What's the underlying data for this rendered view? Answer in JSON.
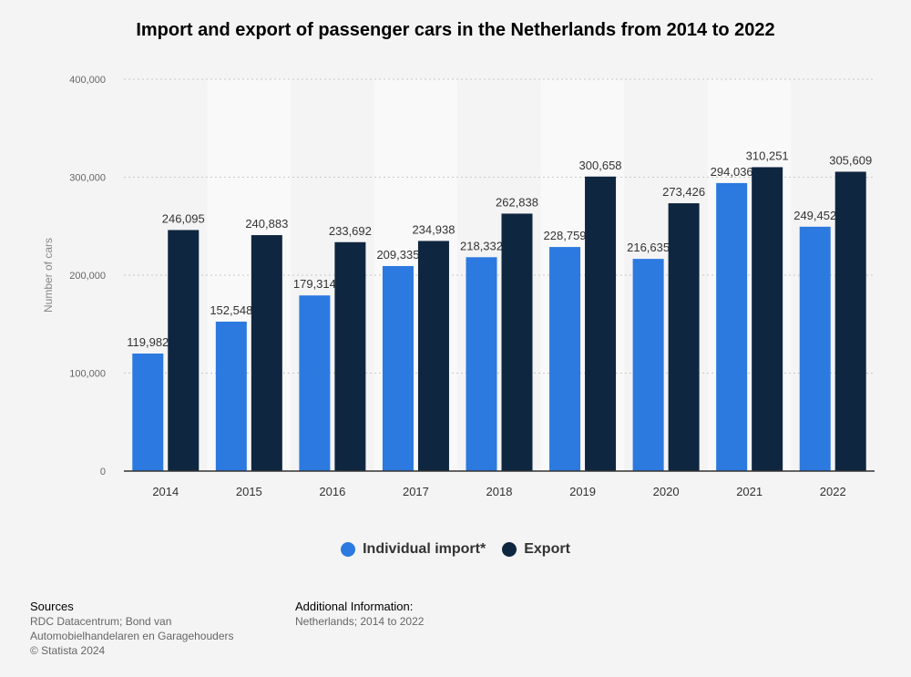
{
  "title": "Import and export of passenger cars in the Netherlands from 2014 to 2022",
  "legend": [
    {
      "label": "Individual import*",
      "color": "#2c79e0"
    },
    {
      "label": "Export",
      "color": "#0f2640"
    }
  ],
  "footer": {
    "sources_header": "Sources",
    "sources_line1": "RDC Datacentrum; Bond van",
    "sources_line2": "Automobielhandelaren en Garagehouders",
    "sources_line3": "© Statista 2024",
    "additional_header": "Additional Information:",
    "additional_text": "Netherlands; 2014 to 2022"
  },
  "chart_data": {
    "type": "bar",
    "title": "Import and export of passenger cars in the Netherlands from 2014 to 2022",
    "xlabel": "",
    "ylabel": "Number of cars",
    "ylim": [
      0,
      400000
    ],
    "yticks": [
      0,
      100000,
      200000,
      300000,
      400000
    ],
    "ytick_labels": [
      "0",
      "100,000",
      "200,000",
      "300,000",
      "400,000"
    ],
    "grid": true,
    "legend_position": "bottom",
    "categories": [
      "2014",
      "2015",
      "2016",
      "2017",
      "2018",
      "2019",
      "2020",
      "2021",
      "2022"
    ],
    "series": [
      {
        "name": "Individual import*",
        "color": "#2c79e0",
        "values": [
          119982,
          152548,
          179314,
          209335,
          218332,
          228759,
          216635,
          294036,
          249452
        ],
        "labels": [
          "119,982",
          "152,548",
          "179,314",
          "209,335",
          "218,332",
          "228,759",
          "216,635",
          "294,036",
          "249,452"
        ]
      },
      {
        "name": "Export",
        "color": "#0f2640",
        "values": [
          246095,
          240883,
          233692,
          234938,
          262838,
          300658,
          273426,
          310251,
          305609
        ],
        "labels": [
          "246,095",
          "240,883",
          "233,692",
          "234,938",
          "262,838",
          "300,658",
          "273,426",
          "310,251",
          "305,609"
        ]
      }
    ]
  }
}
